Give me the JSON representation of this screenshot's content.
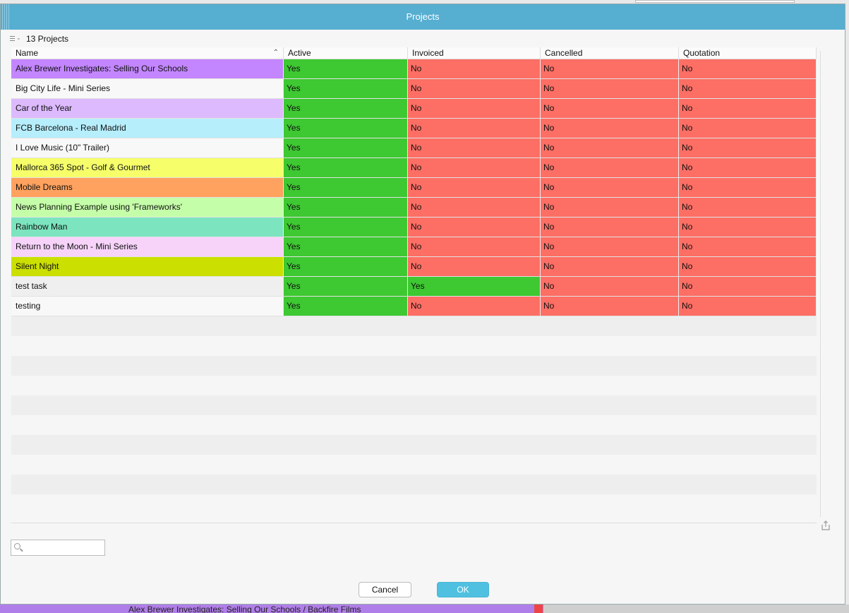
{
  "window": {
    "title": "Projects"
  },
  "list_header": {
    "count_text": "13 Projects"
  },
  "columns": [
    {
      "label": "Name",
      "sorted": "ascending"
    },
    {
      "label": "Active"
    },
    {
      "label": "Invoiced"
    },
    {
      "label": "Cancelled"
    },
    {
      "label": "Quotation"
    }
  ],
  "colors": {
    "yes": "#3ec832",
    "no": "#fd6e64",
    "title_bar": "#56aed1",
    "ok_button": "#4fc0e0"
  },
  "rows": [
    {
      "name": "Alex Brewer Investigates: Selling Our Schools",
      "color": "#c386ff",
      "active": "Yes",
      "invoiced": "No",
      "cancelled": "No",
      "quotation": "No"
    },
    {
      "name": "Big City Life - Mini Series",
      "color": "#f8f8f8",
      "active": "Yes",
      "invoiced": "No",
      "cancelled": "No",
      "quotation": "No"
    },
    {
      "name": "Car of the Year",
      "color": "#dcbafd",
      "active": "Yes",
      "invoiced": "No",
      "cancelled": "No",
      "quotation": "No"
    },
    {
      "name": "FCB Barcelona - Real Madrid",
      "color": "#b6eefc",
      "active": "Yes",
      "invoiced": "No",
      "cancelled": "No",
      "quotation": "No"
    },
    {
      "name": "I Love Music (10\" Trailer)",
      "color": "#f8f8f8",
      "active": "Yes",
      "invoiced": "No",
      "cancelled": "No",
      "quotation": "No"
    },
    {
      "name": "Mallorca 365 Spot - Golf & Gourmet",
      "color": "#f6ff6a",
      "active": "Yes",
      "invoiced": "No",
      "cancelled": "No",
      "quotation": "No"
    },
    {
      "name": "Mobile Dreams",
      "color": "#ffa25f",
      "active": "Yes",
      "invoiced": "No",
      "cancelled": "No",
      "quotation": "No"
    },
    {
      "name": "News Planning Example using 'Frameworks'",
      "color": "#c5fea9",
      "active": "Yes",
      "invoiced": "No",
      "cancelled": "No",
      "quotation": "No"
    },
    {
      "name": "Rainbow Man",
      "color": "#7ce5bf",
      "active": "Yes",
      "invoiced": "No",
      "cancelled": "No",
      "quotation": "No"
    },
    {
      "name": "Return to the Moon - Mini Series",
      "color": "#f7d3fa",
      "active": "Yes",
      "invoiced": "No",
      "cancelled": "No",
      "quotation": "No"
    },
    {
      "name": "Silent Night",
      "color": "#cbdf00",
      "active": "Yes",
      "invoiced": "No",
      "cancelled": "No",
      "quotation": "No"
    },
    {
      "name": "test task",
      "color": "#efefef",
      "active": "Yes",
      "invoiced": "Yes",
      "cancelled": "No",
      "quotation": "No"
    },
    {
      "name": "testing",
      "color": "#f8f8f8",
      "active": "Yes",
      "invoiced": "No",
      "cancelled": "No",
      "quotation": "No"
    }
  ],
  "search": {
    "value": "",
    "placeholder": ""
  },
  "buttons": {
    "cancel": "Cancel",
    "ok": "OK"
  },
  "background": {
    "partial_text": "Alex Brewer Investigates: Selling Our Schools / Backfire Films"
  }
}
